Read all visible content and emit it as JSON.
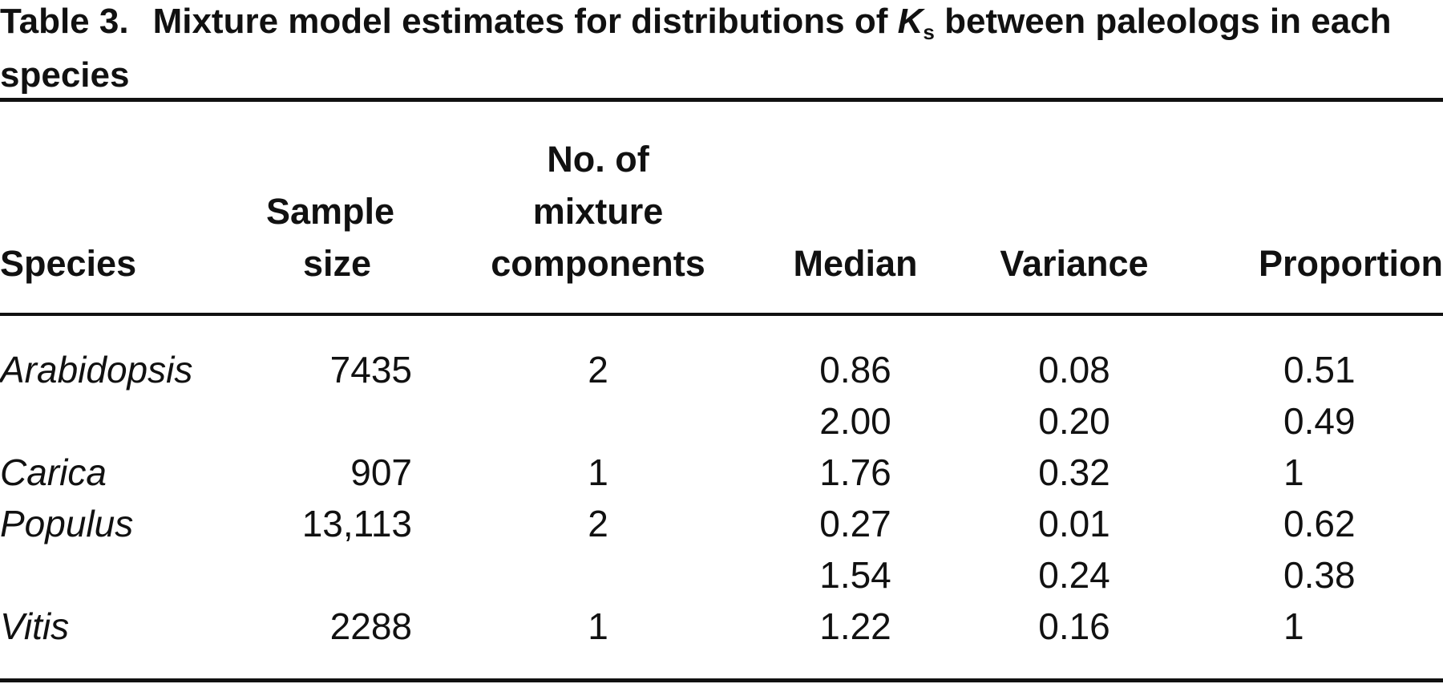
{
  "title": {
    "label": "Table 3.",
    "text_before": "Mixture model estimates for distributions of ",
    "symbol": "K",
    "subscript": "s",
    "text_after": " between paleologs in each species"
  },
  "columns": {
    "species": "Species",
    "sample_size": [
      "Sample",
      "size"
    ],
    "components": [
      "No. of",
      "mixture",
      "components"
    ],
    "median": "Median",
    "variance": "Variance",
    "proportion": "Proportion"
  },
  "rows": [
    {
      "species": "Arabidopsis",
      "sample_size": "7435",
      "components": "2",
      "median": "0.86",
      "variance": "0.08",
      "proportion": "0.51"
    },
    {
      "species": "",
      "sample_size": "",
      "components": "",
      "median": "2.00",
      "variance": "0.20",
      "proportion": "0.49"
    },
    {
      "species": "Carica",
      "sample_size": "907",
      "components": "1",
      "median": "1.76",
      "variance": "0.32",
      "proportion": "1"
    },
    {
      "species": "Populus",
      "sample_size": "13,113",
      "components": "2",
      "median": "0.27",
      "variance": "0.01",
      "proportion": "0.62"
    },
    {
      "species": "",
      "sample_size": "",
      "components": "",
      "median": "1.54",
      "variance": "0.24",
      "proportion": "0.38"
    },
    {
      "species": "Vitis",
      "sample_size": "2288",
      "components": "1",
      "median": "1.22",
      "variance": "0.16",
      "proportion": "1"
    }
  ]
}
